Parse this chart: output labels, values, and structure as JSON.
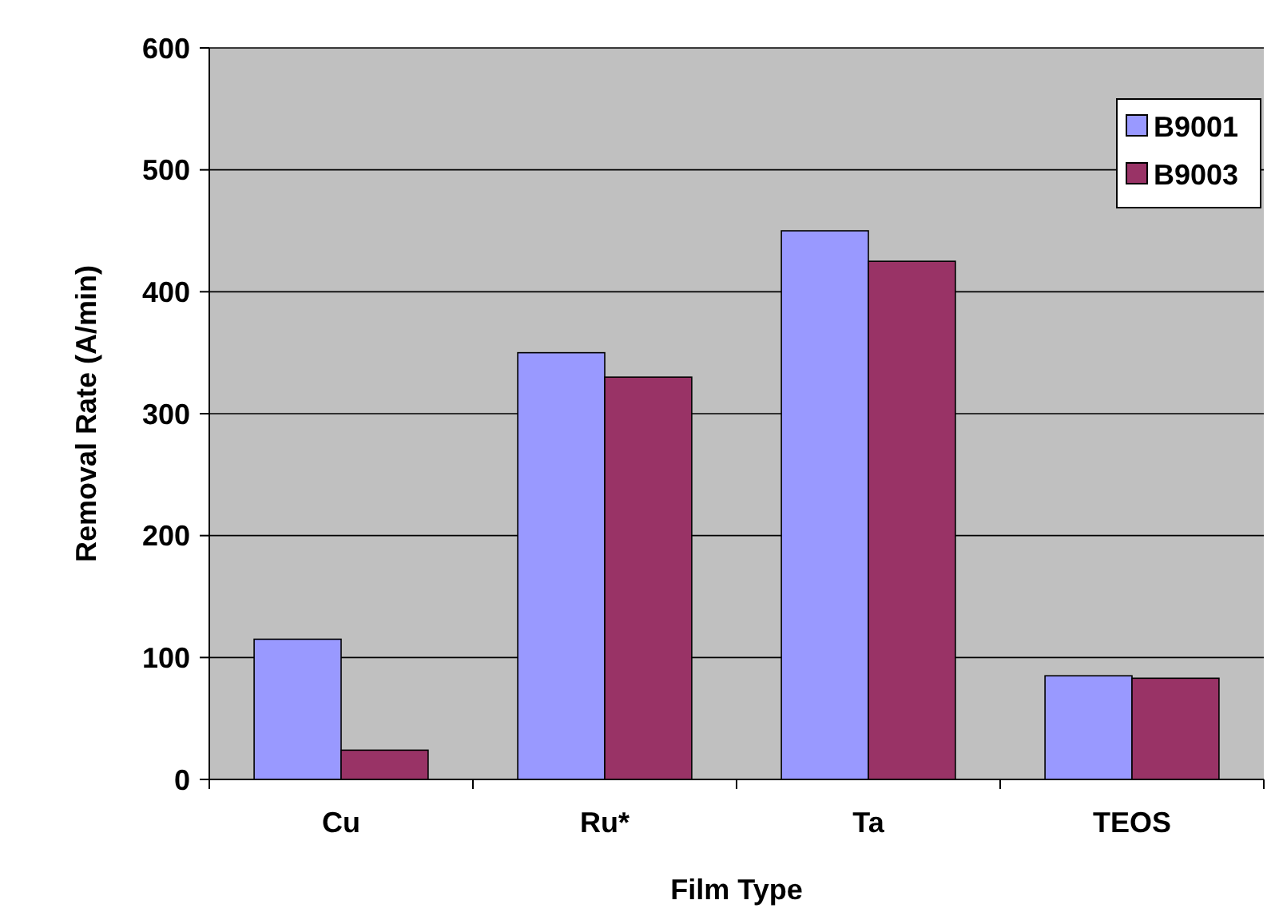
{
  "chart_data": {
    "type": "bar",
    "xlabel": "Film Type",
    "ylabel": "Removal Rate (A/min)",
    "categories": [
      "Cu",
      "Ru*",
      "Ta",
      "TEOS"
    ],
    "series": [
      {
        "name": "B9001",
        "color": "#9999ff",
        "values": [
          115,
          350,
          450,
          85
        ]
      },
      {
        "name": "B9003",
        "color": "#993366",
        "values": [
          24,
          330,
          425,
          83
        ]
      }
    ],
    "ylim": [
      0,
      600
    ],
    "yticks": [
      0,
      100,
      200,
      300,
      400,
      500,
      600
    ],
    "grid": "y",
    "legend": "top right"
  }
}
